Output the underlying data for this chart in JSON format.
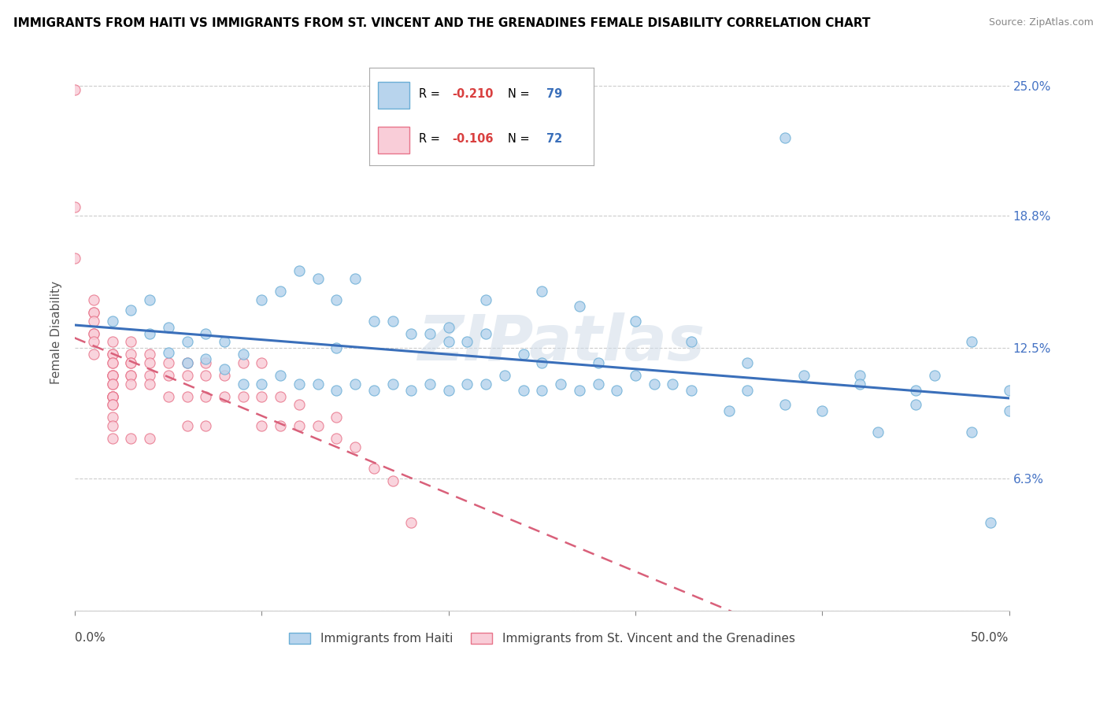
{
  "title": "IMMIGRANTS FROM HAITI VS IMMIGRANTS FROM ST. VINCENT AND THE GRENADINES FEMALE DISABILITY CORRELATION CHART",
  "source": "Source: ZipAtlas.com",
  "ylabel_label": "Female Disability",
  "y_ticks": [
    0.0,
    0.063,
    0.125,
    0.188,
    0.25
  ],
  "y_tick_labels": [
    "",
    "6.3%",
    "12.5%",
    "18.8%",
    "25.0%"
  ],
  "x_range": [
    0.0,
    0.5
  ],
  "y_range": [
    0.0,
    0.265
  ],
  "watermark": "ZIPatlas",
  "series": [
    {
      "name": "Immigrants from Haiti",
      "color": "#b8d4ed",
      "border_color": "#6baed6",
      "R": -0.21,
      "N": 79,
      "trend_color": "#3a6fba",
      "trend_style": "solid",
      "x": [
        0.02,
        0.03,
        0.04,
        0.04,
        0.05,
        0.05,
        0.06,
        0.06,
        0.07,
        0.07,
        0.08,
        0.08,
        0.09,
        0.09,
        0.1,
        0.1,
        0.11,
        0.11,
        0.12,
        0.12,
        0.13,
        0.13,
        0.14,
        0.14,
        0.15,
        0.15,
        0.16,
        0.16,
        0.17,
        0.18,
        0.18,
        0.19,
        0.2,
        0.2,
        0.21,
        0.22,
        0.22,
        0.23,
        0.24,
        0.24,
        0.25,
        0.25,
        0.26,
        0.27,
        0.28,
        0.28,
        0.29,
        0.3,
        0.31,
        0.32,
        0.33,
        0.35,
        0.36,
        0.38,
        0.38,
        0.4,
        0.42,
        0.43,
        0.45,
        0.46,
        0.48,
        0.49,
        0.2,
        0.22,
        0.25,
        0.27,
        0.3,
        0.33,
        0.36,
        0.39,
        0.42,
        0.45,
        0.48,
        0.5,
        0.5,
        0.14,
        0.17,
        0.19,
        0.21
      ],
      "y": [
        0.138,
        0.143,
        0.132,
        0.148,
        0.123,
        0.135,
        0.118,
        0.128,
        0.12,
        0.132,
        0.115,
        0.128,
        0.108,
        0.122,
        0.108,
        0.148,
        0.112,
        0.152,
        0.108,
        0.162,
        0.108,
        0.158,
        0.105,
        0.125,
        0.108,
        0.158,
        0.105,
        0.138,
        0.108,
        0.105,
        0.132,
        0.108,
        0.105,
        0.128,
        0.108,
        0.108,
        0.132,
        0.112,
        0.105,
        0.122,
        0.105,
        0.118,
        0.108,
        0.105,
        0.108,
        0.118,
        0.105,
        0.112,
        0.108,
        0.108,
        0.105,
        0.095,
        0.105,
        0.098,
        0.225,
        0.095,
        0.112,
        0.085,
        0.105,
        0.112,
        0.128,
        0.042,
        0.135,
        0.148,
        0.152,
        0.145,
        0.138,
        0.128,
        0.118,
        0.112,
        0.108,
        0.098,
        0.085,
        0.105,
        0.095,
        0.148,
        0.138,
        0.132,
        0.128
      ]
    },
    {
      "name": "Immigrants from St. Vincent and the Grenadines",
      "color": "#f9cdd8",
      "border_color": "#e8748a",
      "R": -0.106,
      "N": 72,
      "trend_color": "#d9607a",
      "trend_style": "dashed",
      "x": [
        0.0,
        0.0,
        0.0,
        0.01,
        0.01,
        0.01,
        0.01,
        0.01,
        0.01,
        0.01,
        0.01,
        0.02,
        0.02,
        0.02,
        0.02,
        0.02,
        0.02,
        0.02,
        0.02,
        0.02,
        0.02,
        0.02,
        0.02,
        0.02,
        0.02,
        0.02,
        0.02,
        0.02,
        0.02,
        0.02,
        0.03,
        0.03,
        0.03,
        0.03,
        0.03,
        0.03,
        0.03,
        0.03,
        0.04,
        0.04,
        0.04,
        0.04,
        0.04,
        0.05,
        0.05,
        0.05,
        0.06,
        0.06,
        0.06,
        0.06,
        0.07,
        0.07,
        0.07,
        0.07,
        0.08,
        0.08,
        0.09,
        0.09,
        0.1,
        0.1,
        0.1,
        0.11,
        0.11,
        0.12,
        0.12,
        0.13,
        0.14,
        0.14,
        0.15,
        0.16,
        0.17,
        0.18
      ],
      "y": [
        0.248,
        0.192,
        0.168,
        0.148,
        0.142,
        0.142,
        0.138,
        0.132,
        0.132,
        0.128,
        0.122,
        0.128,
        0.122,
        0.122,
        0.118,
        0.118,
        0.112,
        0.112,
        0.112,
        0.108,
        0.108,
        0.102,
        0.102,
        0.102,
        0.102,
        0.098,
        0.098,
        0.092,
        0.088,
        0.082,
        0.128,
        0.122,
        0.118,
        0.118,
        0.112,
        0.112,
        0.108,
        0.082,
        0.122,
        0.118,
        0.112,
        0.108,
        0.082,
        0.118,
        0.112,
        0.102,
        0.118,
        0.112,
        0.102,
        0.088,
        0.118,
        0.112,
        0.102,
        0.088,
        0.112,
        0.102,
        0.118,
        0.102,
        0.118,
        0.102,
        0.088,
        0.102,
        0.088,
        0.098,
        0.088,
        0.088,
        0.092,
        0.082,
        0.078,
        0.068,
        0.062,
        0.042
      ]
    }
  ]
}
